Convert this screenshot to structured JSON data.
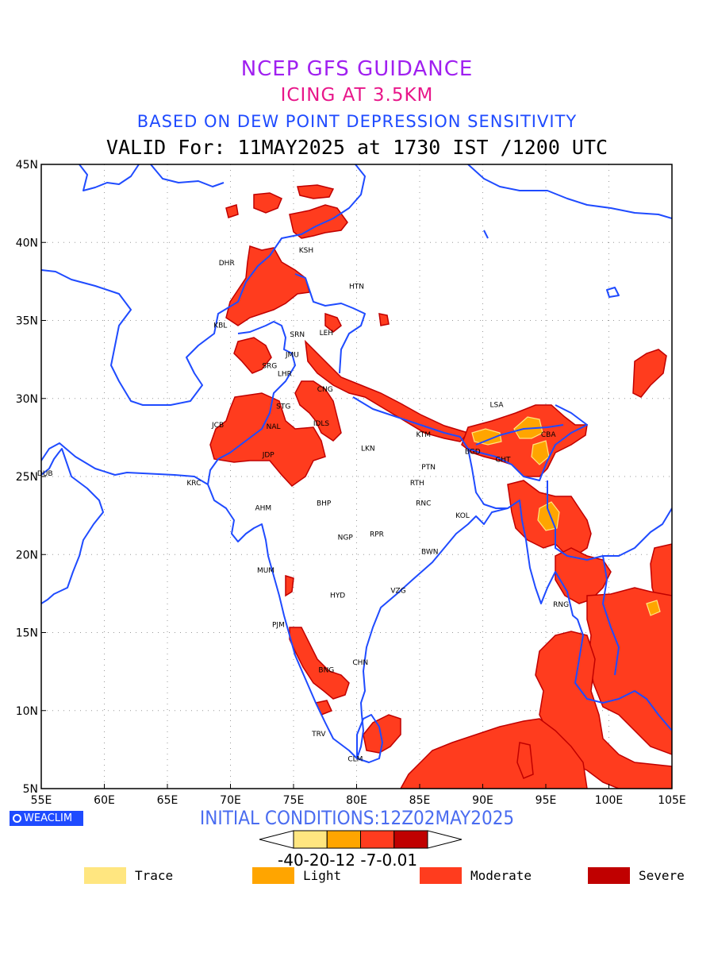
{
  "header": {
    "line1": "NCEP GFS GUIDANCE",
    "line2": "ICING AT 3.5KM",
    "line3": "BASED ON DEW POINT DEPRESSION SENSITIVITY",
    "line4": "VALID For: 11MAY2025 at 1730 IST /1200 UTC"
  },
  "map": {
    "lon_range": [
      55,
      105
    ],
    "lat_range": [
      5,
      45
    ],
    "lon_ticks": [
      "55E",
      "60E",
      "65E",
      "70E",
      "75E",
      "80E",
      "85E",
      "90E",
      "95E",
      "100E",
      "105E"
    ],
    "lat_ticks": [
      "5N",
      "10N",
      "15N",
      "20N",
      "25N",
      "30N",
      "35N",
      "40N",
      "45N"
    ],
    "coast_color": "#1f4bff",
    "grid": true,
    "stations": [
      {
        "code": "KSH",
        "lon": 76.0,
        "lat": 39.5
      },
      {
        "code": "HTN",
        "lon": 80.0,
        "lat": 37.2
      },
      {
        "code": "DHR",
        "lon": 69.7,
        "lat": 38.7
      },
      {
        "code": "KBL",
        "lon": 69.2,
        "lat": 34.7
      },
      {
        "code": "SRN",
        "lon": 75.3,
        "lat": 34.1
      },
      {
        "code": "LEH",
        "lon": 77.6,
        "lat": 34.2
      },
      {
        "code": "JMU",
        "lon": 74.9,
        "lat": 32.8
      },
      {
        "code": "SRG",
        "lon": 73.1,
        "lat": 32.1
      },
      {
        "code": "LHR",
        "lon": 74.3,
        "lat": 31.6
      },
      {
        "code": "CNG",
        "lon": 77.5,
        "lat": 30.6
      },
      {
        "code": "STG",
        "lon": 74.2,
        "lat": 29.5
      },
      {
        "code": "JCB",
        "lon": 69.0,
        "lat": 28.3
      },
      {
        "code": "NAL",
        "lon": 73.4,
        "lat": 28.2
      },
      {
        "code": "IDLS",
        "lon": 77.2,
        "lat": 28.4
      },
      {
        "code": "JDP",
        "lon": 73.0,
        "lat": 26.4
      },
      {
        "code": "LKN",
        "lon": 80.9,
        "lat": 26.8
      },
      {
        "code": "KTM",
        "lon": 85.3,
        "lat": 27.7
      },
      {
        "code": "LSA",
        "lon": 91.1,
        "lat": 29.6
      },
      {
        "code": "BGD",
        "lon": 89.2,
        "lat": 26.6
      },
      {
        "code": "GHT",
        "lon": 91.6,
        "lat": 26.1
      },
      {
        "code": "CBA",
        "lon": 95.2,
        "lat": 27.7
      },
      {
        "code": "DUB",
        "lon": 55.3,
        "lat": 25.2
      },
      {
        "code": "KRC",
        "lon": 67.1,
        "lat": 24.6
      },
      {
        "code": "PTN",
        "lon": 85.7,
        "lat": 25.6
      },
      {
        "code": "RTH",
        "lon": 84.8,
        "lat": 24.6
      },
      {
        "code": "AHM",
        "lon": 72.6,
        "lat": 23.0
      },
      {
        "code": "BHP",
        "lon": 77.4,
        "lat": 23.3
      },
      {
        "code": "RNC",
        "lon": 85.3,
        "lat": 23.3
      },
      {
        "code": "KOL",
        "lon": 88.4,
        "lat": 22.5
      },
      {
        "code": "NGP",
        "lon": 79.1,
        "lat": 21.1
      },
      {
        "code": "RPR",
        "lon": 81.6,
        "lat": 21.3
      },
      {
        "code": "BWN",
        "lon": 85.8,
        "lat": 20.2
      },
      {
        "code": "MUM",
        "lon": 72.8,
        "lat": 19.0
      },
      {
        "code": "HYD",
        "lon": 78.5,
        "lat": 17.4
      },
      {
        "code": "VZG",
        "lon": 83.3,
        "lat": 17.7
      },
      {
        "code": "RNG",
        "lon": 96.2,
        "lat": 16.8
      },
      {
        "code": "PJM",
        "lon": 73.8,
        "lat": 15.5
      },
      {
        "code": "CHN",
        "lon": 80.3,
        "lat": 13.1
      },
      {
        "code": "BNG",
        "lon": 77.6,
        "lat": 12.6
      },
      {
        "code": "TRV",
        "lon": 77.0,
        "lat": 8.5
      },
      {
        "code": "CLM",
        "lon": 79.9,
        "lat": 6.9
      }
    ]
  },
  "footer": {
    "badge": "WEACLIM",
    "initial_conditions": "INITIAL CONDITIONS:12Z02MAY2025"
  },
  "colorbar": {
    "values_text": "-40-20-12 -7-0.01",
    "colors": [
      "#ffe680",
      "#ffa500",
      "#ff3c1e",
      "#c00000"
    ]
  },
  "legend": [
    {
      "label": "Trace",
      "color": "#ffe680"
    },
    {
      "label": "Light",
      "color": "#ffa500"
    },
    {
      "label": "Moderate",
      "color": "#ff3c1e"
    },
    {
      "label": "Severe",
      "color": "#c00000"
    }
  ]
}
